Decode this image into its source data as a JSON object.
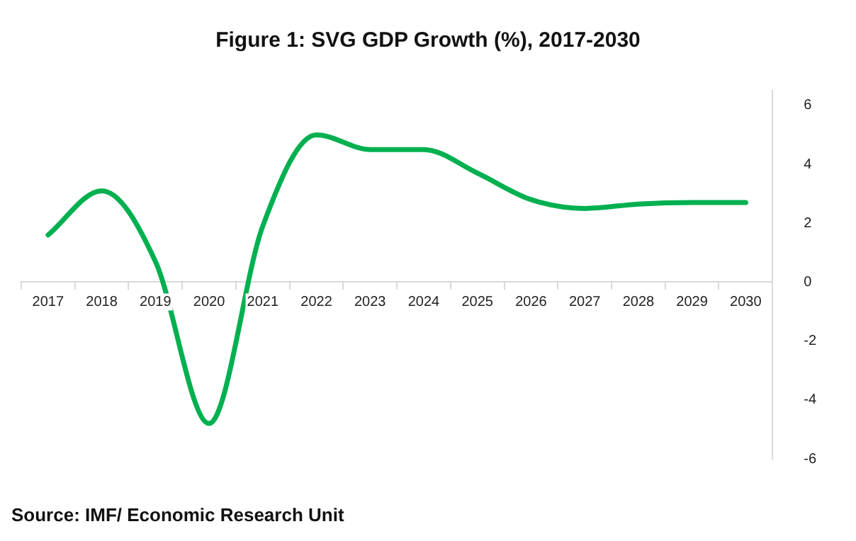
{
  "chart_data": {
    "type": "line",
    "title": "Figure 1: SVG GDP Growth (%), 2017-2030",
    "categories": [
      "2017",
      "2018",
      "2019",
      "2020",
      "2021",
      "2022",
      "2023",
      "2024",
      "2025",
      "2026",
      "2027",
      "2028",
      "2029",
      "2030"
    ],
    "series": [
      {
        "color": "#00b050",
        "values": [
          1.6,
          3.1,
          0.7,
          -4.8,
          1.9,
          5.0,
          4.5,
          4.5,
          3.7,
          2.8,
          2.5,
          2.65,
          2.7,
          2.7
        ]
      }
    ],
    "ylim": [
      -6,
      6.5
    ],
    "yticks": [
      -6,
      -4,
      -2,
      0,
      2,
      4,
      6
    ],
    "grid": false,
    "legend": false,
    "marker": "none",
    "line_style": "solid",
    "annotations": [
      "Source: IMF/ Economic Research Unit"
    ]
  }
}
